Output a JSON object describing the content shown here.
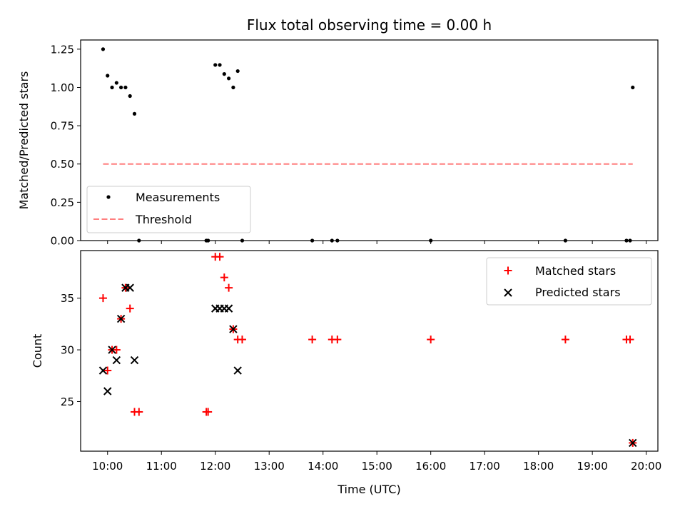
{
  "chart_data": [
    {
      "type": "scatter",
      "title": "Flux total observing time = 0.00 h",
      "xlabel": "",
      "ylabel": "Matched/Predicted stars",
      "xlim": [
        "09:30",
        "20:13"
      ],
      "ylim": [
        0,
        1.31
      ],
      "yticks": [
        "0.00",
        "0.25",
        "0.50",
        "0.75",
        "1.00",
        "1.25"
      ],
      "grid": false,
      "legend": "lower-left",
      "series": [
        {
          "name": "Measurements",
          "marker": "dot",
          "color": "#000000",
          "points": [
            [
              "09:55",
              1.25
            ],
            [
              "10:00",
              1.077
            ],
            [
              "10:05",
              1.0
            ],
            [
              "10:10",
              1.03
            ],
            [
              "10:15",
              1.0
            ],
            [
              "10:20",
              1.0
            ],
            [
              "10:25",
              0.944
            ],
            [
              "10:30",
              0.828
            ],
            [
              "10:35",
              0.0
            ],
            [
              "11:50",
              0.0
            ],
            [
              "11:52",
              0.0
            ],
            [
              "12:00",
              1.147
            ],
            [
              "12:05",
              1.147
            ],
            [
              "12:10",
              1.088
            ],
            [
              "12:15",
              1.059
            ],
            [
              "12:20",
              1.0
            ],
            [
              "12:25",
              1.107
            ],
            [
              "12:30",
              0.0
            ],
            [
              "13:48",
              0.0
            ],
            [
              "14:10",
              0.0
            ],
            [
              "14:16",
              0.0
            ],
            [
              "16:00",
              0.0
            ],
            [
              "18:30",
              0.0
            ],
            [
              "19:38",
              0.0
            ],
            [
              "19:42",
              0.0
            ],
            [
              "19:45",
              1.0
            ]
          ]
        },
        {
          "name": "Threshold",
          "marker": "dashed-line",
          "color": "#ff7f7f",
          "x": [
            "09:55",
            "19:45"
          ],
          "y": [
            0.5,
            0.5
          ]
        }
      ]
    },
    {
      "type": "scatter",
      "title": "",
      "xlabel": "Time (UTC)",
      "ylabel": "Count",
      "xlim": [
        "09:30",
        "20:13"
      ],
      "ylim": [
        20.2,
        39.6
      ],
      "xticks": [
        "10:00",
        "11:00",
        "12:00",
        "13:00",
        "14:00",
        "15:00",
        "16:00",
        "17:00",
        "18:00",
        "19:00",
        "20:00"
      ],
      "yticks": [
        "25",
        "30",
        "35"
      ],
      "grid": false,
      "legend": "top-right",
      "series": [
        {
          "name": "Matched stars",
          "marker": "plus",
          "color": "#ff0000",
          "points": [
            [
              "09:55",
              35
            ],
            [
              "10:00",
              28
            ],
            [
              "10:05",
              30
            ],
            [
              "10:10",
              30
            ],
            [
              "10:15",
              33
            ],
            [
              "10:20",
              36
            ],
            [
              "10:25",
              34
            ],
            [
              "10:30",
              24
            ],
            [
              "10:35",
              24
            ],
            [
              "11:50",
              24
            ],
            [
              "11:52",
              24
            ],
            [
              "12:00",
              39
            ],
            [
              "12:05",
              39
            ],
            [
              "12:10",
              37
            ],
            [
              "12:15",
              36
            ],
            [
              "12:20",
              32
            ],
            [
              "12:25",
              31
            ],
            [
              "12:30",
              31
            ],
            [
              "13:48",
              31
            ],
            [
              "14:10",
              31
            ],
            [
              "14:16",
              31
            ],
            [
              "16:00",
              31
            ],
            [
              "18:30",
              31
            ],
            [
              "19:38",
              31
            ],
            [
              "19:42",
              31
            ],
            [
              "19:45",
              21
            ]
          ]
        },
        {
          "name": "Predicted stars",
          "marker": "x",
          "color": "#000000",
          "points": [
            [
              "09:55",
              28
            ],
            [
              "10:00",
              26
            ],
            [
              "10:05",
              30
            ],
            [
              "10:10",
              29
            ],
            [
              "10:15",
              33
            ],
            [
              "10:20",
              36
            ],
            [
              "10:25",
              36
            ],
            [
              "10:30",
              29
            ],
            [
              "12:00",
              34
            ],
            [
              "12:05",
              34
            ],
            [
              "12:10",
              34
            ],
            [
              "12:15",
              34
            ],
            [
              "12:20",
              32
            ],
            [
              "12:25",
              28
            ],
            [
              "19:45",
              21
            ]
          ]
        }
      ]
    }
  ]
}
